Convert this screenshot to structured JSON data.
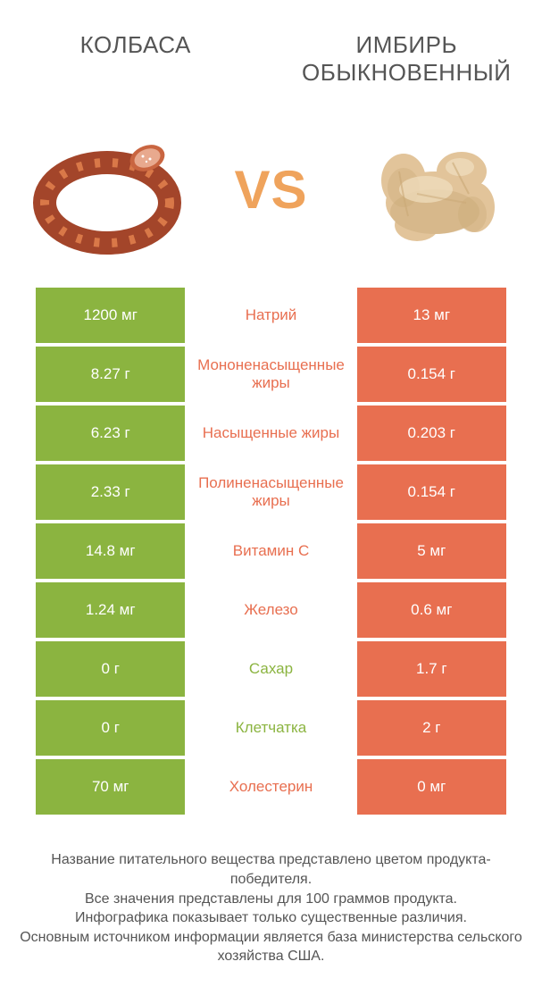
{
  "colors": {
    "left_bg": "#8bb440",
    "right_bg": "#e86f50",
    "mid_text_left_wins": "#e86f50",
    "mid_text_right_wins": "#8bb440",
    "vs": "#efa35c",
    "title_text": "#555555",
    "footer_text": "#555555",
    "sausage_main": "#a3452a",
    "sausage_highlight": "#d97848",
    "sausage_cut": "#e8a98e",
    "ginger_main": "#e2c49a",
    "ginger_shadow": "#c9a876",
    "ginger_highlight": "#f1dfc0"
  },
  "typography": {
    "title_fontsize": 26,
    "vs_fontsize": 60,
    "cell_fontsize": 17,
    "footer_fontsize": 16
  },
  "titles": {
    "left": "КОЛБАСА",
    "right": "ИМБИРЬ ОБЫКНОВЕННЫЙ"
  },
  "vs": "VS",
  "rows": [
    {
      "left": "1200 мг",
      "mid": "Натрий",
      "right": "13 мг",
      "winner": "left"
    },
    {
      "left": "8.27 г",
      "mid": "Мононенасыщенные жиры",
      "right": "0.154 г",
      "winner": "left"
    },
    {
      "left": "6.23 г",
      "mid": "Насыщенные жиры",
      "right": "0.203 г",
      "winner": "left"
    },
    {
      "left": "2.33 г",
      "mid": "Полиненасыщенные жиры",
      "right": "0.154 г",
      "winner": "left"
    },
    {
      "left": "14.8 мг",
      "mid": "Витамин C",
      "right": "5 мг",
      "winner": "left"
    },
    {
      "left": "1.24 мг",
      "mid": "Железо",
      "right": "0.6 мг",
      "winner": "left"
    },
    {
      "left": "0 г",
      "mid": "Сахар",
      "right": "1.7 г",
      "winner": "right"
    },
    {
      "left": "0 г",
      "mid": "Клетчатка",
      "right": "2 г",
      "winner": "right"
    },
    {
      "left": "70 мг",
      "mid": "Холестерин",
      "right": "0 мг",
      "winner": "left"
    }
  ],
  "footer": [
    "Название питательного вещества представлено цветом продукта-победителя.",
    "Все значения представлены для 100 граммов продукта.",
    "Инфографика показывает только существенные различия.",
    "Основным источником информации является база министерства сельского хозяйства США."
  ]
}
